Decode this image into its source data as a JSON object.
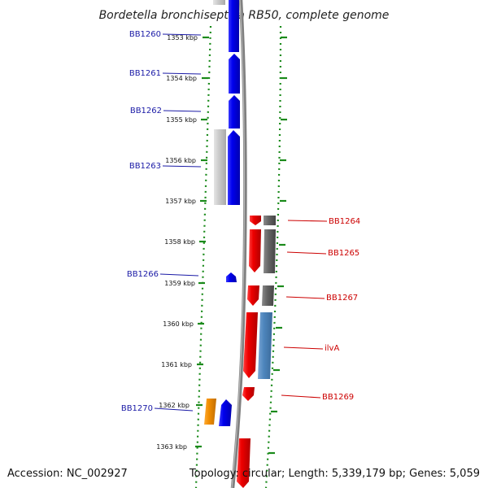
{
  "title": "Bordetella bronchiseptica RB50, complete genome",
  "footer": {
    "accession": "Accession: NC_002927",
    "summary": "Topology: circular; Length: 5,339,179 bp; Genes: 5,059"
  },
  "colors": {
    "forward_strand": "#0000ee",
    "reverse_strand": "#ee0000",
    "forward_label": "#1a1aa6",
    "reverse_label": "#cc0000",
    "tick": "#1a8a1a",
    "backbone": "#808080",
    "gray_feature": "#666666",
    "light_gray_feature": "#c8c8c8",
    "steel_blue_feature": "#4f86bd",
    "orange_feature": "#f08c00"
  },
  "axis": {
    "unit": "kbp",
    "ticks": [
      "1353 kbp",
      "1354 kbp",
      "1355 kbp",
      "1356 kbp",
      "1357 kbp",
      "1358 kbp",
      "1359 kbp",
      "1360 kbp",
      "1361 kbp",
      "1362 kbp",
      "1363 kbp"
    ]
  },
  "gene_labels": {
    "left": [
      "BB1260",
      "BB1261",
      "BB1262",
      "BB1263",
      "BB1266",
      "BB1270"
    ],
    "right": [
      "BB1264",
      "BB1265",
      "BB1267",
      "ilvA",
      "BB1269"
    ]
  }
}
